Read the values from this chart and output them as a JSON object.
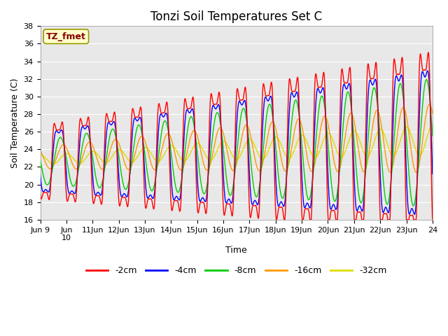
{
  "title": "Tonzi Soil Temperatures Set C",
  "xlabel": "Time",
  "ylabel": "Soil Temperature (C)",
  "ylim": [
    16,
    38
  ],
  "series_labels": [
    "-2cm",
    "-4cm",
    "-8cm",
    "-16cm",
    "-32cm"
  ],
  "series_colors": [
    "#ff0000",
    "#0000ff",
    "#00cc00",
    "#ff9900",
    "#dddd00"
  ],
  "annotation_text": "TZ_fmet",
  "annotation_bg": "#ffffcc",
  "annotation_border": "#999900",
  "plot_bg_color": "#e8e8e8",
  "title_fontsize": 12,
  "label_fontsize": 9,
  "tick_fontsize": 8
}
